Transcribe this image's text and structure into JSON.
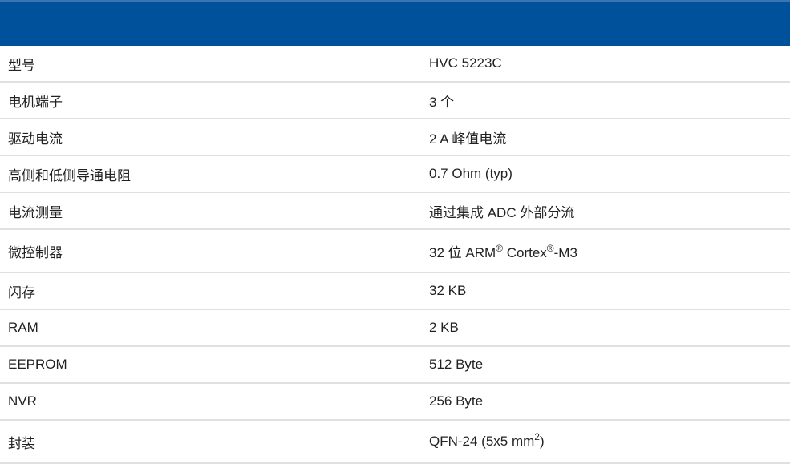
{
  "header": {
    "color": "#00519b"
  },
  "rows": [
    {
      "label": "型号",
      "value": "HVC 5223C"
    },
    {
      "label": "电机端子",
      "value": "3 个"
    },
    {
      "label": "驱动电流",
      "value": "2 A 峰值电流"
    },
    {
      "label": "高侧和低侧导通电阻",
      "value": "0.7 Ohm (typ)"
    },
    {
      "label": "电流测量",
      "value": "通过集成 ADC 外部分流"
    },
    {
      "label": "微控制器",
      "value_parts": [
        "32 位 ARM",
        "®",
        " Cortex",
        "®",
        "-M3"
      ]
    },
    {
      "label": "闪存",
      "value": "32 KB"
    },
    {
      "label": "RAM",
      "value": "2 KB"
    },
    {
      "label": "EEPROM",
      "value": "512 Byte"
    },
    {
      "label": "NVR",
      "value": "256 Byte"
    },
    {
      "label": "封装",
      "value_parts": [
        "QFN-24 (5x5 mm",
        "2",
        ")"
      ]
    }
  ]
}
